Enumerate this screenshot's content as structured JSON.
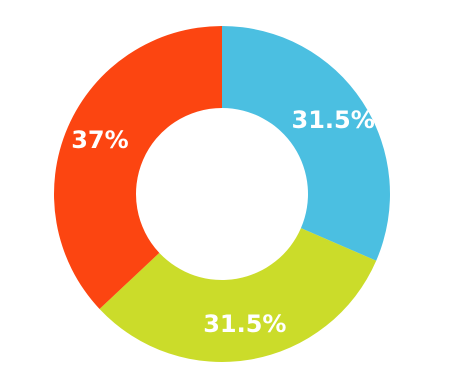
{
  "chart_data": {
    "type": "donut",
    "values": [
      31.5,
      31.5,
      37
    ],
    "value_labels": [
      "31.5%",
      "31.5%",
      "37%"
    ],
    "colors": [
      "#4bbfe1",
      "#cbdc2a",
      "#fc4511"
    ]
  }
}
